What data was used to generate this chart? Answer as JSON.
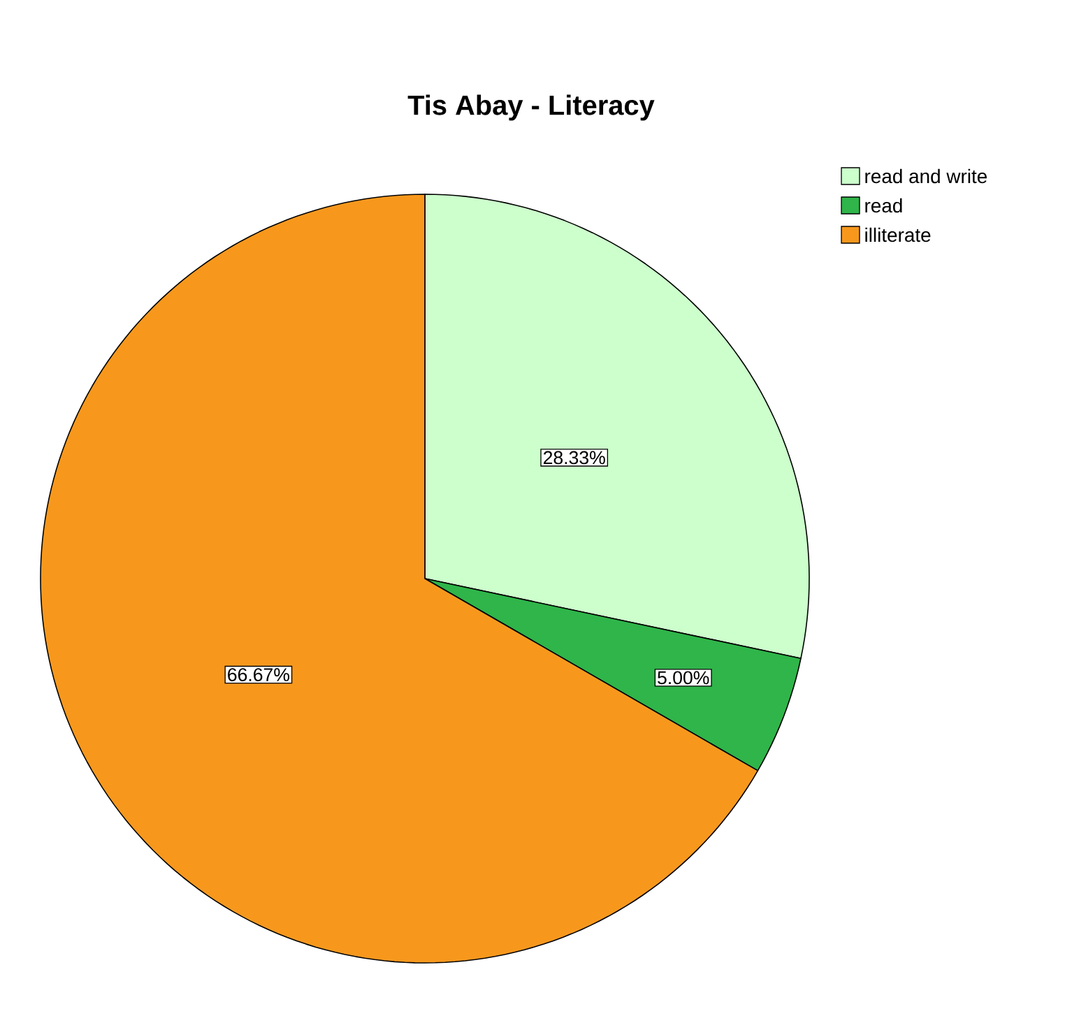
{
  "chart_data": {
    "type": "pie",
    "title": "Tis Abay - Literacy",
    "categories": [
      "read and write",
      "read",
      "illiterate"
    ],
    "values": [
      28.33,
      5.0,
      66.67
    ],
    "colors": [
      "#ccffcc",
      "#2fb54a",
      "#f7981d"
    ],
    "value_labels": [
      "28.33%",
      "5.00%",
      "66.67%"
    ],
    "legend": "top right"
  }
}
